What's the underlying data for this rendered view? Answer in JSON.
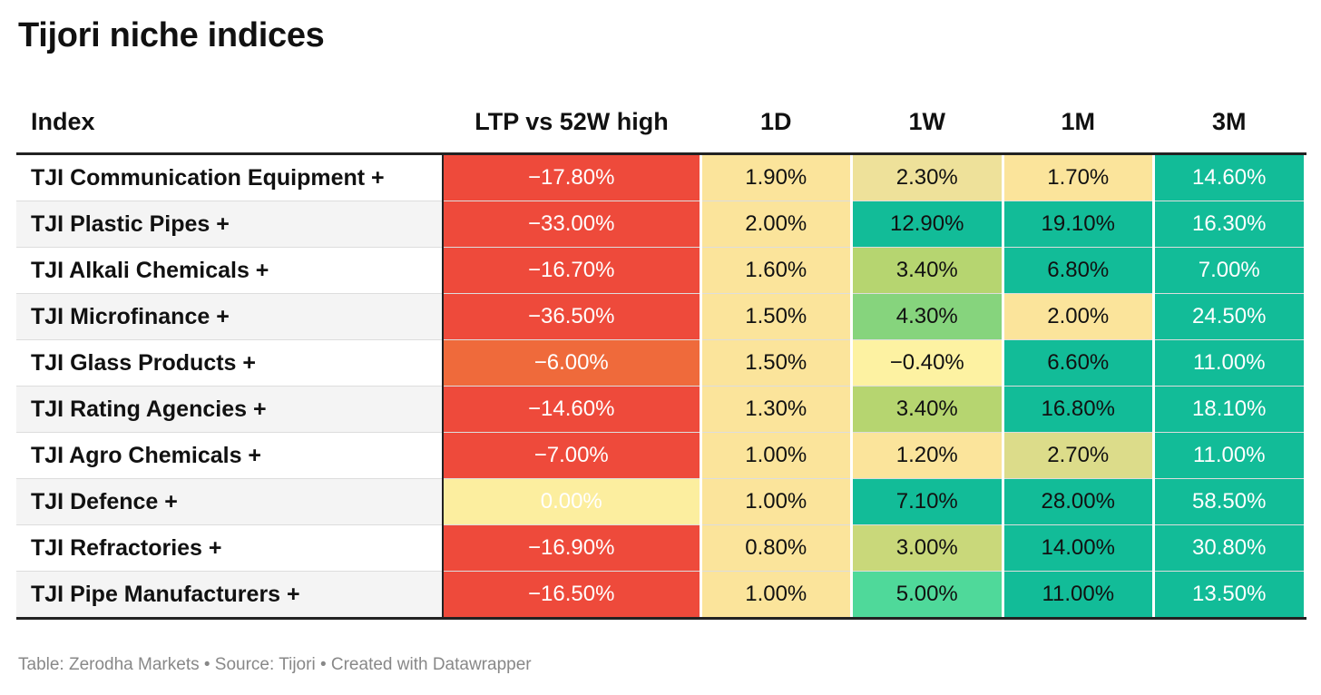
{
  "title": "Tijori niche indices",
  "footer": "Table: Zerodha Markets • Source: Tijori • Created with Datawrapper",
  "chart_data": {
    "type": "table",
    "columns": [
      "Index",
      "LTP vs 52W high",
      "1D",
      "1W",
      "1M",
      "3M"
    ],
    "rows": [
      {
        "name": "TJI Communication Equipment +",
        "values": [
          -17.8,
          1.9,
          2.3,
          1.7,
          14.6
        ],
        "display": [
          "−17.80%",
          "1.90%",
          "2.30%",
          "1.70%",
          "14.60%"
        ]
      },
      {
        "name": "TJI Plastic Pipes +",
        "values": [
          -33.0,
          2.0,
          12.9,
          19.1,
          16.3
        ],
        "display": [
          "−33.00%",
          "2.00%",
          "12.90%",
          "19.10%",
          "16.30%"
        ]
      },
      {
        "name": "TJI Alkali Chemicals +",
        "values": [
          -16.7,
          1.6,
          3.4,
          6.8,
          7.0
        ],
        "display": [
          "−16.70%",
          "1.60%",
          "3.40%",
          "6.80%",
          "7.00%"
        ]
      },
      {
        "name": "TJI Microfinance +",
        "values": [
          -36.5,
          1.5,
          4.3,
          2.0,
          24.5
        ],
        "display": [
          "−36.50%",
          "1.50%",
          "4.30%",
          "2.00%",
          "24.50%"
        ]
      },
      {
        "name": "TJI Glass Products +",
        "values": [
          -6.0,
          1.5,
          -0.4,
          6.6,
          11.0
        ],
        "display": [
          "−6.00%",
          "1.50%",
          "−0.40%",
          "6.60%",
          "11.00%"
        ]
      },
      {
        "name": "TJI Rating Agencies +",
        "values": [
          -14.6,
          1.3,
          3.4,
          16.8,
          18.1
        ],
        "display": [
          "−14.60%",
          "1.30%",
          "3.40%",
          "16.80%",
          "18.10%"
        ]
      },
      {
        "name": "TJI Agro Chemicals +",
        "values": [
          -7.0,
          1.0,
          1.2,
          2.7,
          11.0
        ],
        "display": [
          "−7.00%",
          "1.00%",
          "1.20%",
          "2.70%",
          "11.00%"
        ]
      },
      {
        "name": "TJI Defence +",
        "values": [
          0.0,
          1.0,
          7.1,
          28.0,
          58.5
        ],
        "display": [
          "0.00%",
          "1.00%",
          "7.10%",
          "28.00%",
          "58.50%"
        ]
      },
      {
        "name": "TJI Refractories +",
        "values": [
          -16.9,
          0.8,
          3.0,
          14.0,
          30.8
        ],
        "display": [
          "−16.90%",
          "0.80%",
          "3.00%",
          "14.00%",
          "30.80%"
        ]
      },
      {
        "name": "TJI Pipe Manufacturers +",
        "values": [
          -16.5,
          1.0,
          5.0,
          11.0,
          13.5
        ],
        "display": [
          "−16.50%",
          "1.00%",
          "5.00%",
          "11.00%",
          "13.50%"
        ]
      }
    ],
    "cell_colors": [
      [
        "#ee4a3b",
        "#fbe49b",
        "#eee19a",
        "#fbe49b",
        "#12bc98"
      ],
      [
        "#ee4a3b",
        "#fbe49b",
        "#12bc98",
        "#12bc98",
        "#12bc98"
      ],
      [
        "#ee4a3b",
        "#fbe49b",
        "#b6d570",
        "#12bc98",
        "#12bc98"
      ],
      [
        "#ee4a3b",
        "#fbe49b",
        "#86d47d",
        "#fbe49b",
        "#12bc98"
      ],
      [
        "#ef6a3b",
        "#fbe49b",
        "#fdf2a2",
        "#12bc98",
        "#12bc98"
      ],
      [
        "#ee4a3b",
        "#fbe49b",
        "#b6d570",
        "#12bc98",
        "#12bc98"
      ],
      [
        "#ee4a3b",
        "#fbe49b",
        "#fbe49b",
        "#dcdc8a",
        "#12bc98"
      ],
      [
        "#fcee9f",
        "#fbe49b",
        "#12bc98",
        "#12bc98",
        "#12bc98"
      ],
      [
        "#ee4a3b",
        "#fbe49b",
        "#c9d87a",
        "#12bc98",
        "#12bc98"
      ],
      [
        "#ee4a3b",
        "#fbe49b",
        "#4fd99a",
        "#12bc98",
        "#12bc98"
      ]
    ],
    "text_colors": [
      "#ffffff",
      "#111111",
      "#111111",
      "#111111",
      "#ffffff"
    ]
  }
}
